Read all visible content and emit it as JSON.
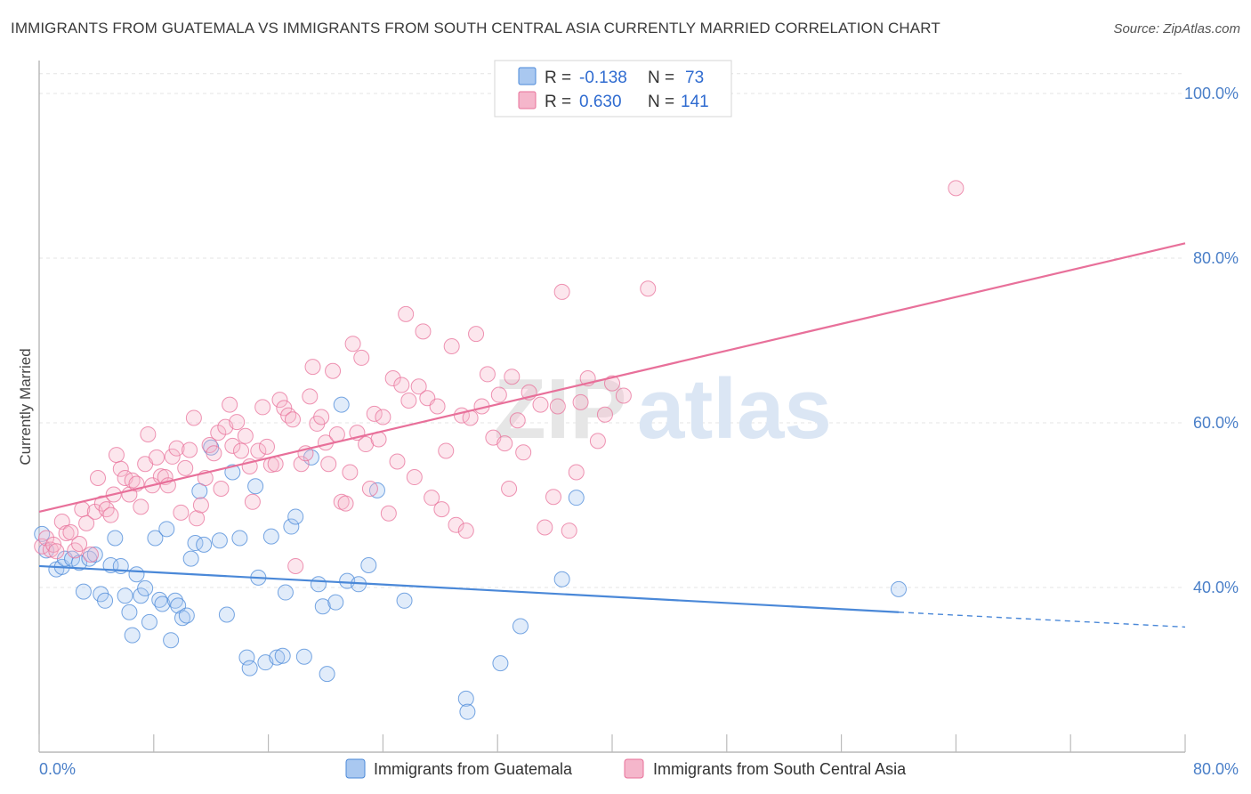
{
  "title": "IMMIGRANTS FROM GUATEMALA VS IMMIGRANTS FROM SOUTH CENTRAL ASIA CURRENTLY MARRIED CORRELATION CHART",
  "source": "Source: ZipAtlas.com",
  "watermark": {
    "zip": "ZIP",
    "atlas": "atlas"
  },
  "colors": {
    "blue": "#4a88d8",
    "blue_fill": "#a9c8f0",
    "pink": "#e8709a",
    "pink_fill": "#f5b6cb",
    "tick": "#4a7fc8"
  },
  "legend": {
    "rows": [
      {
        "r_label": "R =",
        "r_value": "-0.138",
        "n_label": "N =",
        "n_value": "73"
      },
      {
        "r_label": "R =",
        "r_value": "0.630",
        "n_label": "N =",
        "n_value": "141"
      }
    ]
  },
  "chart_data": {
    "type": "scatter",
    "title": "IMMIGRANTS FROM GUATEMALA VS IMMIGRANTS FROM SOUTH CENTRAL ASIA CURRENTLY MARRIED CORRELATION CHART",
    "xlabel": "",
    "ylabel": "Currently Married",
    "xlim": [
      0,
      80
    ],
    "ylim": [
      20,
      104
    ],
    "x_tick_labels": [
      "0.0%",
      "80.0%"
    ],
    "y_ticks": [
      40,
      60,
      80,
      100
    ],
    "y_tick_labels": [
      "40.0%",
      "60.0%",
      "80.0%",
      "100.0%"
    ],
    "grid": true,
    "legend_position": "top-center",
    "series": [
      {
        "name": "Immigrants from Guatemala",
        "color": "#4a88d8",
        "trend": {
          "x0": 0,
          "y0": 42.6,
          "x1": 60,
          "y1": 37.0,
          "dash_to_x": 80,
          "dash_to_y": 35.2
        },
        "points": [
          [
            0.2,
            46.5
          ],
          [
            0.5,
            44.5
          ],
          [
            1.2,
            42.2
          ],
          [
            1.6,
            42.5
          ],
          [
            1.8,
            43.5
          ],
          [
            2.3,
            43.5
          ],
          [
            2.8,
            43.0
          ],
          [
            3.1,
            39.5
          ],
          [
            3.5,
            43.5
          ],
          [
            3.9,
            44.0
          ],
          [
            4.3,
            39.2
          ],
          [
            4.6,
            38.4
          ],
          [
            5.0,
            42.7
          ],
          [
            5.3,
            46.0
          ],
          [
            5.7,
            42.6
          ],
          [
            6.0,
            39.0
          ],
          [
            6.3,
            37.0
          ],
          [
            6.5,
            34.2
          ],
          [
            6.8,
            41.6
          ],
          [
            7.1,
            39.0
          ],
          [
            7.4,
            39.9
          ],
          [
            7.7,
            35.8
          ],
          [
            8.1,
            46.0
          ],
          [
            8.4,
            38.5
          ],
          [
            8.6,
            38.0
          ],
          [
            8.9,
            47.1
          ],
          [
            9.2,
            33.6
          ],
          [
            9.5,
            38.4
          ],
          [
            9.7,
            37.8
          ],
          [
            10.0,
            36.3
          ],
          [
            10.3,
            36.6
          ],
          [
            10.6,
            43.5
          ],
          [
            10.9,
            45.4
          ],
          [
            11.2,
            51.7
          ],
          [
            11.5,
            45.2
          ],
          [
            12.0,
            57.0
          ],
          [
            12.6,
            45.7
          ],
          [
            13.1,
            36.7
          ],
          [
            13.5,
            54.0
          ],
          [
            14.0,
            46.0
          ],
          [
            14.5,
            31.5
          ],
          [
            14.7,
            30.2
          ],
          [
            15.1,
            52.3
          ],
          [
            15.3,
            41.2
          ],
          [
            15.8,
            30.9
          ],
          [
            16.2,
            46.2
          ],
          [
            16.6,
            31.5
          ],
          [
            17.0,
            31.7
          ],
          [
            17.2,
            39.4
          ],
          [
            17.6,
            47.4
          ],
          [
            17.9,
            48.6
          ],
          [
            18.5,
            31.6
          ],
          [
            19.0,
            55.8
          ],
          [
            19.5,
            40.4
          ],
          [
            19.8,
            37.7
          ],
          [
            20.1,
            29.5
          ],
          [
            20.7,
            38.2
          ],
          [
            21.1,
            62.2
          ],
          [
            21.5,
            40.8
          ],
          [
            22.3,
            40.4
          ],
          [
            23.0,
            42.7
          ],
          [
            23.6,
            51.8
          ],
          [
            25.5,
            38.4
          ],
          [
            29.8,
            26.5
          ],
          [
            29.9,
            24.9
          ],
          [
            32.2,
            30.8
          ],
          [
            33.6,
            35.3
          ],
          [
            36.5,
            41.0
          ],
          [
            37.5,
            50.9
          ],
          [
            60.0,
            39.8
          ]
        ]
      },
      {
        "name": "Immigrants from South Central Asia",
        "color": "#e8709a",
        "trend": {
          "x0": 0,
          "y0": 49.2,
          "x1": 80,
          "y1": 81.8
        },
        "points": [
          [
            0.2,
            45.0
          ],
          [
            0.5,
            46.0
          ],
          [
            0.8,
            44.6
          ],
          [
            1.0,
            45.2
          ],
          [
            1.2,
            44.4
          ],
          [
            1.6,
            48.0
          ],
          [
            1.9,
            46.6
          ],
          [
            2.2,
            46.7
          ],
          [
            2.5,
            44.5
          ],
          [
            2.8,
            45.3
          ],
          [
            3.0,
            49.5
          ],
          [
            3.3,
            47.8
          ],
          [
            3.6,
            44.0
          ],
          [
            3.9,
            49.2
          ],
          [
            4.1,
            53.3
          ],
          [
            4.4,
            50.2
          ],
          [
            4.7,
            49.5
          ],
          [
            5.0,
            48.8
          ],
          [
            5.2,
            51.3
          ],
          [
            5.4,
            56.1
          ],
          [
            5.7,
            54.4
          ],
          [
            6.0,
            53.3
          ],
          [
            6.3,
            51.3
          ],
          [
            6.5,
            53.0
          ],
          [
            6.8,
            52.6
          ],
          [
            7.1,
            49.8
          ],
          [
            7.4,
            55.0
          ],
          [
            7.6,
            58.6
          ],
          [
            7.9,
            52.4
          ],
          [
            8.2,
            55.8
          ],
          [
            8.5,
            53.5
          ],
          [
            8.8,
            53.4
          ],
          [
            9.0,
            52.4
          ],
          [
            9.3,
            55.9
          ],
          [
            9.6,
            56.9
          ],
          [
            9.9,
            49.1
          ],
          [
            10.2,
            54.5
          ],
          [
            10.5,
            56.7
          ],
          [
            10.8,
            60.6
          ],
          [
            11.0,
            48.4
          ],
          [
            11.3,
            50.0
          ],
          [
            11.6,
            53.3
          ],
          [
            11.9,
            57.3
          ],
          [
            12.2,
            56.3
          ],
          [
            12.5,
            58.8
          ],
          [
            12.7,
            52.0
          ],
          [
            13.0,
            59.5
          ],
          [
            13.3,
            62.2
          ],
          [
            13.5,
            57.2
          ],
          [
            13.8,
            60.1
          ],
          [
            14.1,
            56.6
          ],
          [
            14.4,
            58.4
          ],
          [
            14.7,
            54.7
          ],
          [
            14.9,
            50.4
          ],
          [
            15.3,
            56.6
          ],
          [
            15.6,
            61.9
          ],
          [
            15.9,
            57.1
          ],
          [
            16.2,
            54.9
          ],
          [
            16.5,
            55.0
          ],
          [
            16.8,
            62.8
          ],
          [
            17.1,
            61.8
          ],
          [
            17.4,
            60.9
          ],
          [
            17.7,
            60.4
          ],
          [
            17.9,
            42.6
          ],
          [
            18.3,
            55.0
          ],
          [
            18.6,
            56.3
          ],
          [
            18.9,
            63.2
          ],
          [
            19.1,
            66.8
          ],
          [
            19.4,
            59.9
          ],
          [
            19.7,
            60.7
          ],
          [
            20.0,
            57.6
          ],
          [
            20.2,
            55.0
          ],
          [
            20.5,
            66.3
          ],
          [
            20.8,
            58.6
          ],
          [
            21.1,
            50.4
          ],
          [
            21.4,
            50.2
          ],
          [
            21.7,
            54.0
          ],
          [
            21.9,
            69.6
          ],
          [
            22.2,
            58.8
          ],
          [
            22.5,
            67.9
          ],
          [
            22.8,
            57.4
          ],
          [
            23.1,
            52.0
          ],
          [
            23.4,
            61.1
          ],
          [
            23.7,
            58.0
          ],
          [
            24.0,
            60.7
          ],
          [
            24.4,
            49.0
          ],
          [
            24.7,
            65.4
          ],
          [
            25.0,
            55.3
          ],
          [
            25.3,
            64.6
          ],
          [
            25.6,
            73.2
          ],
          [
            25.8,
            62.7
          ],
          [
            26.2,
            53.4
          ],
          [
            26.5,
            64.4
          ],
          [
            26.8,
            71.1
          ],
          [
            27.1,
            63.0
          ],
          [
            27.4,
            50.9
          ],
          [
            27.8,
            62.0
          ],
          [
            28.1,
            49.5
          ],
          [
            28.4,
            56.6
          ],
          [
            28.8,
            69.3
          ],
          [
            29.1,
            47.6
          ],
          [
            29.5,
            60.9
          ],
          [
            29.8,
            46.9
          ],
          [
            30.1,
            60.6
          ],
          [
            30.5,
            70.8
          ],
          [
            30.9,
            62.0
          ],
          [
            31.3,
            65.9
          ],
          [
            31.7,
            58.2
          ],
          [
            32.1,
            63.4
          ],
          [
            32.5,
            57.5
          ],
          [
            32.8,
            52.0
          ],
          [
            33.0,
            65.6
          ],
          [
            33.4,
            60.3
          ],
          [
            33.8,
            56.4
          ],
          [
            34.2,
            63.7
          ],
          [
            35.0,
            62.2
          ],
          [
            35.3,
            47.3
          ],
          [
            35.9,
            51.0
          ],
          [
            36.2,
            62.0
          ],
          [
            36.5,
            75.9
          ],
          [
            37.0,
            46.9
          ],
          [
            37.5,
            54.0
          ],
          [
            37.8,
            62.5
          ],
          [
            38.3,
            65.4
          ],
          [
            39.0,
            57.8
          ],
          [
            39.5,
            61.0
          ],
          [
            40.0,
            64.8
          ],
          [
            40.8,
            63.3
          ],
          [
            42.5,
            76.3
          ],
          [
            64.0,
            88.5
          ]
        ]
      }
    ]
  }
}
